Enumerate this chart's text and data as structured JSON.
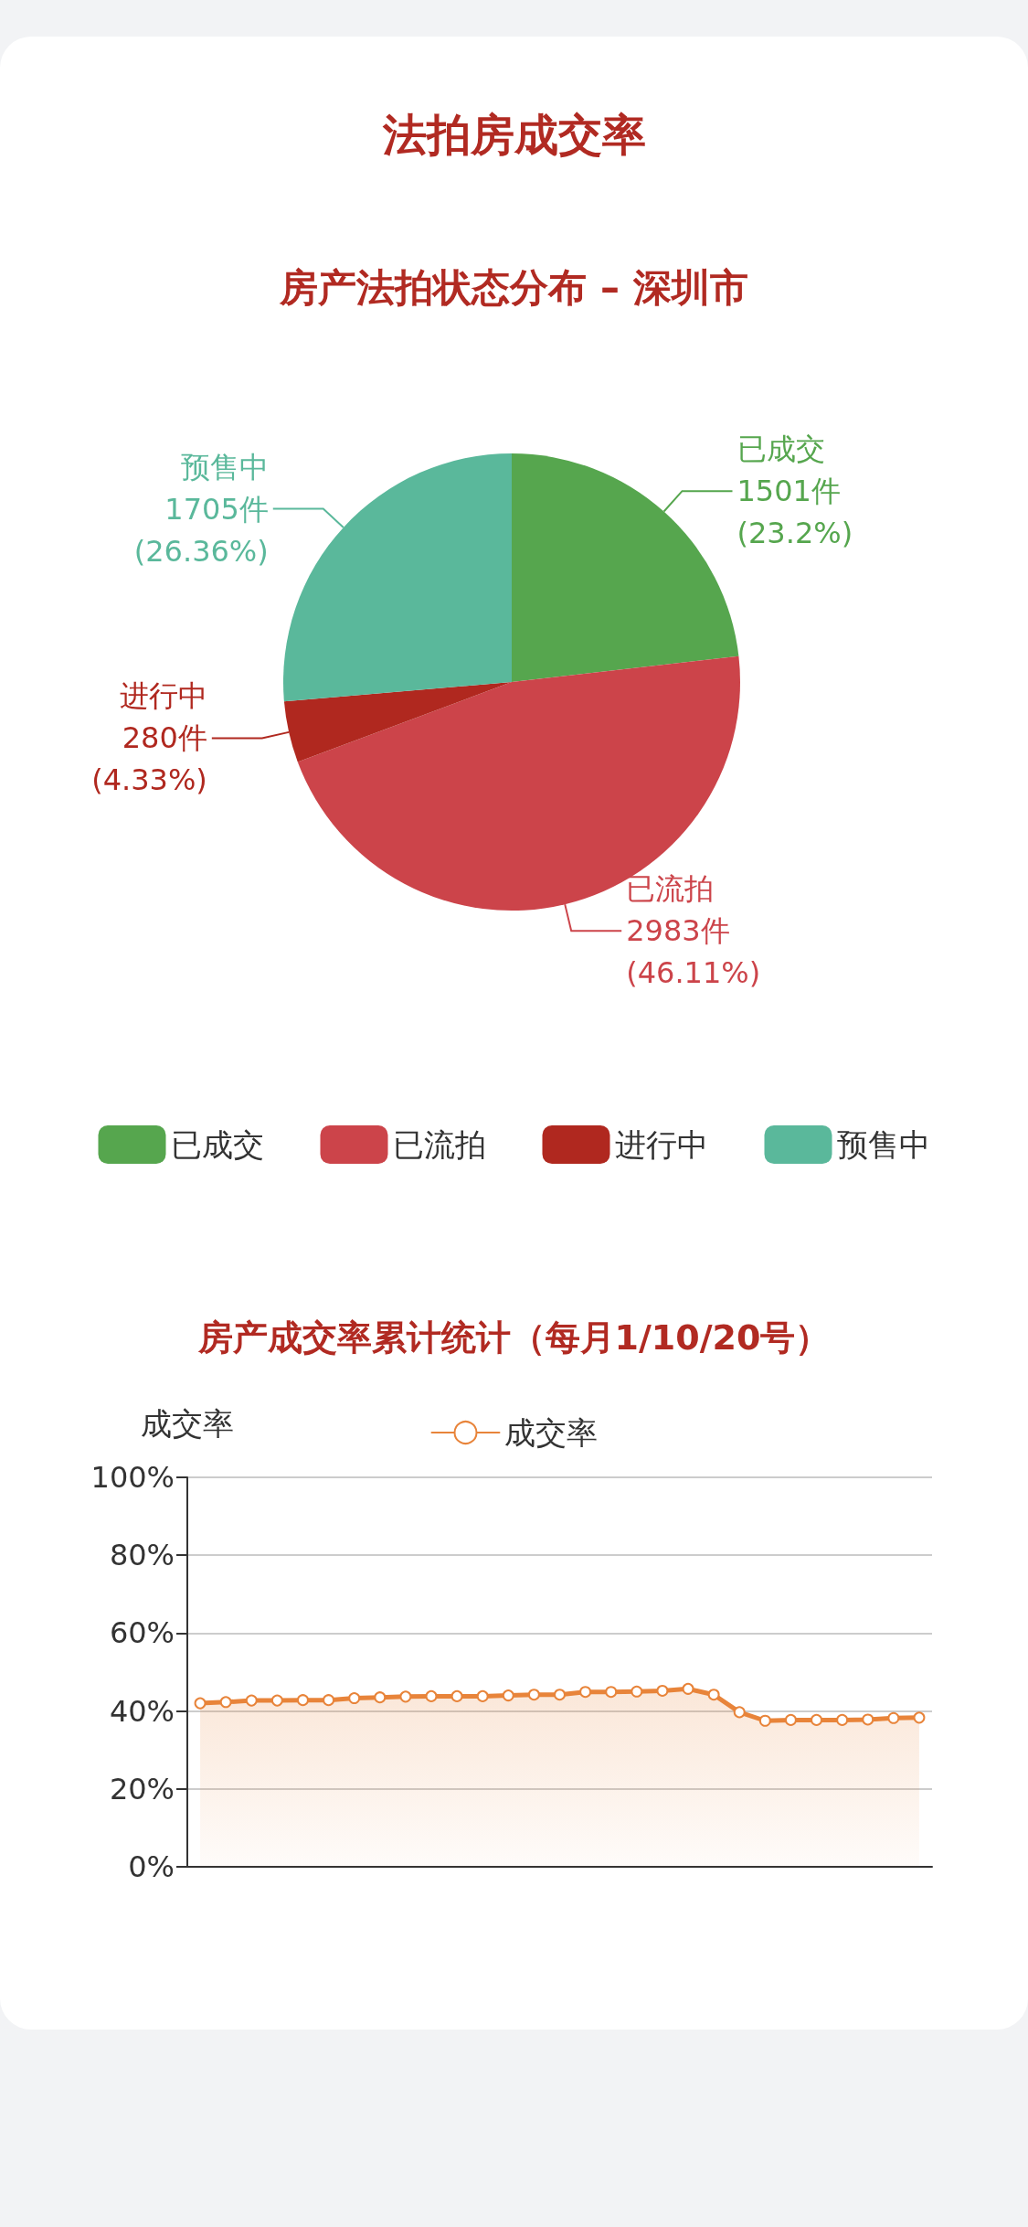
{
  "chart_data": [
    {
      "type": "pie",
      "title": "法拍房成交率",
      "subtitle": "房产法拍状态分布 – 深圳市",
      "categories": [
        "已成交",
        "已流拍",
        "进行中",
        "预售中"
      ],
      "values": [
        1501,
        2983,
        280,
        1705
      ],
      "colors": [
        "#56a64e",
        "#cc444a",
        "#b0281f",
        "#5ab89b"
      ],
      "value_labels": [
        "1501件\n(23.2%)",
        "2983件\n(46.11%)",
        "280件\n(4.33%)",
        "1705件\n(26.36%)"
      ],
      "legend": "bottom"
    },
    {
      "type": "area",
      "title": "房产成交率累计统计（每月1/10/20号）",
      "ylabel": "成交率",
      "categories": [
        null,
        null,
        null,
        null,
        null,
        null,
        null,
        null,
        null,
        null,
        null,
        null,
        null,
        null,
        null,
        null,
        null,
        null,
        null,
        null,
        null,
        null,
        null,
        null,
        null,
        null,
        null,
        null,
        null
      ],
      "series": [
        {
          "name": "成交率",
          "color": "#e8843a",
          "values": [
            42.0,
            42.3,
            42.7,
            42.7,
            42.8,
            42.8,
            43.3,
            43.5,
            43.7,
            43.8,
            43.8,
            43.8,
            44.0,
            44.2,
            44.2,
            44.9,
            44.9,
            45.0,
            45.2,
            45.7,
            44.2,
            39.7,
            37.5,
            37.7,
            37.7,
            37.7,
            37.8,
            38.2,
            38.3
          ]
        }
      ],
      "ylim": [
        0,
        100
      ],
      "yticks": [
        {
          "value": 0,
          "label": "0%"
        },
        {
          "value": 20,
          "label": "20%"
        },
        {
          "value": 40,
          "label": "40%"
        },
        {
          "value": 60,
          "label": "60%"
        },
        {
          "value": 80,
          "label": "80%"
        },
        {
          "value": 100,
          "label": "100%"
        }
      ],
      "grid": "y",
      "legend": "top",
      "marker": "circle",
      "line_style": "solid"
    }
  ]
}
